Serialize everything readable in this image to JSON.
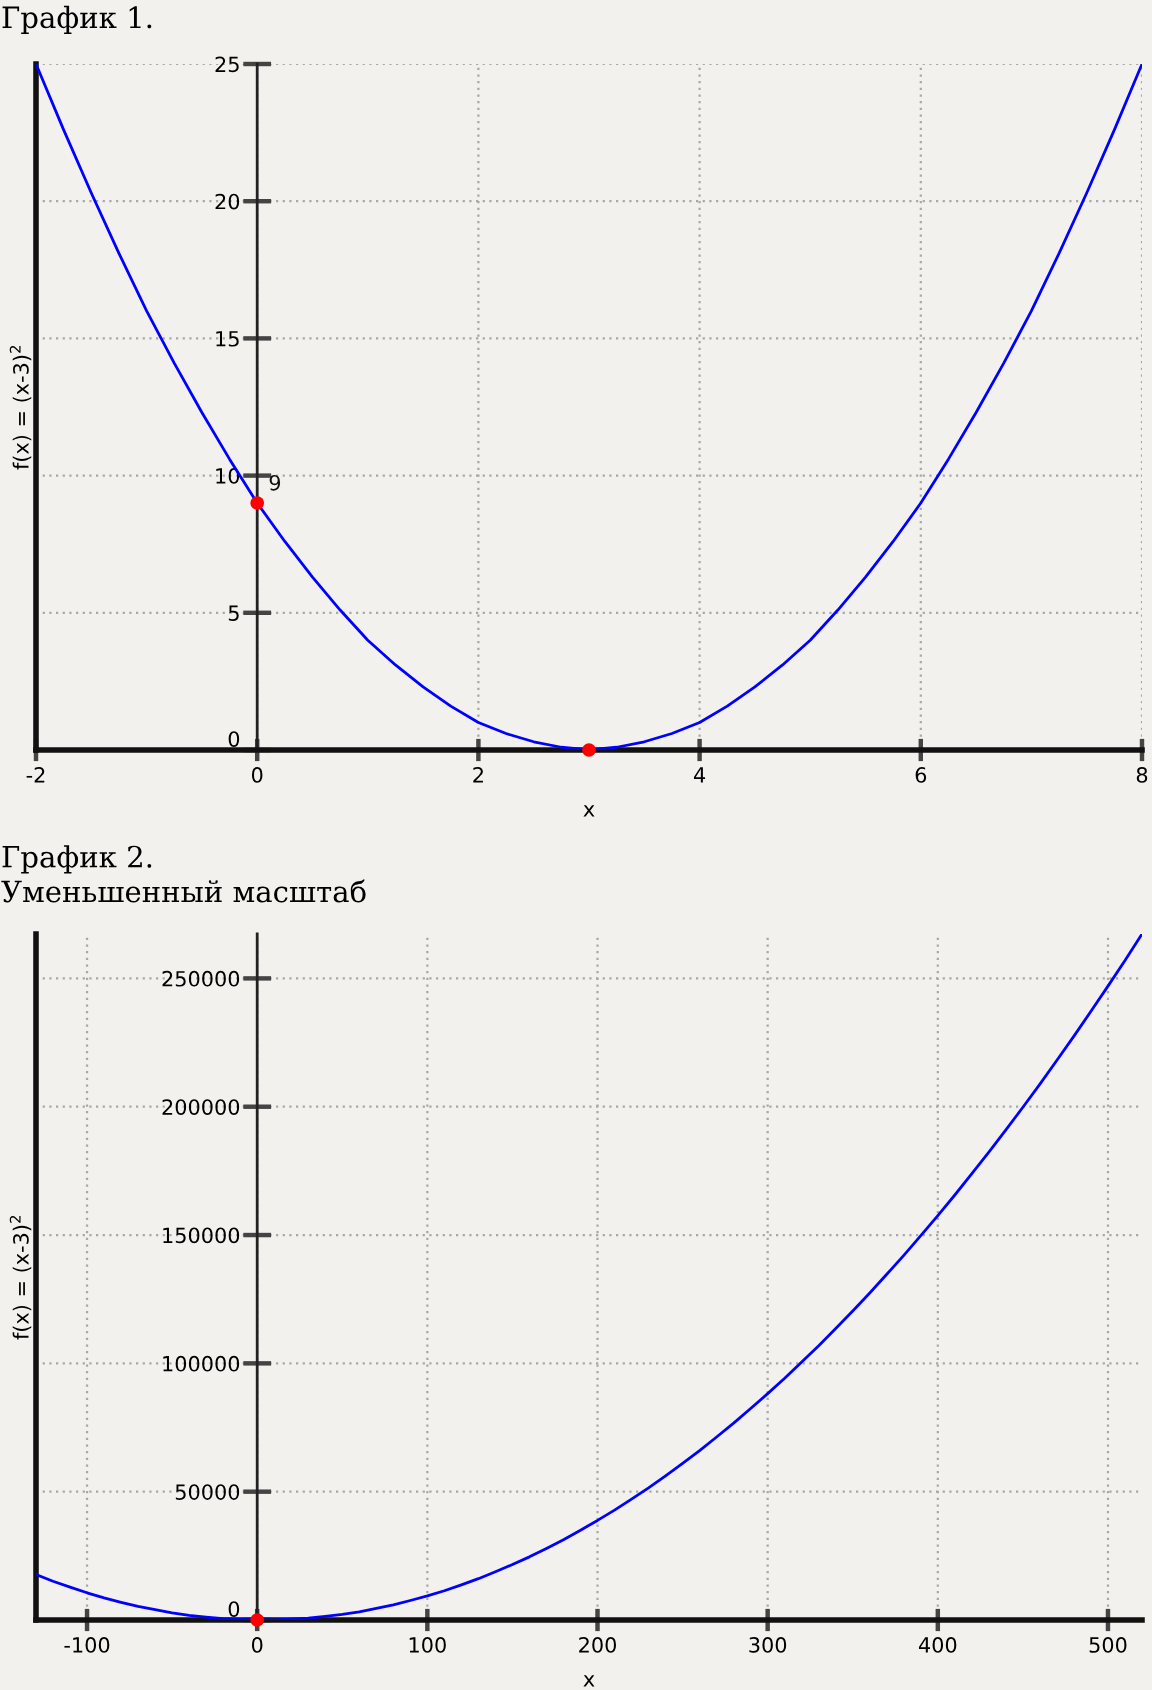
{
  "chart_data": [
    {
      "type": "line",
      "title": "График 1.",
      "xlabel": "x",
      "ylabel": "f(x) = (x-3)$^{2}$",
      "xlim": [
        -2,
        8
      ],
      "ylim": [
        0,
        25
      ],
      "xticks": [
        -2,
        0,
        2,
        4,
        6,
        8
      ],
      "yticks": [
        0,
        5,
        10,
        15,
        20,
        25
      ],
      "grid": true,
      "series": [
        {
          "color": "#0000ff",
          "x": [
            -2,
            -1.75,
            -1.5,
            -1.25,
            -1,
            -0.75,
            -0.5,
            -0.25,
            0,
            0.25,
            0.5,
            0.75,
            1,
            1.25,
            1.5,
            1.75,
            2,
            2.25,
            2.5,
            2.75,
            3,
            3.25,
            3.5,
            3.75,
            4,
            4.25,
            4.5,
            4.75,
            5,
            5.25,
            5.5,
            5.75,
            6,
            6.25,
            6.5,
            6.75,
            7,
            7.25,
            7.5,
            7.75,
            8
          ],
          "values": [
            25,
            22.6,
            20.3,
            18.1,
            16,
            14.1,
            12.3,
            10.6,
            9,
            7.6,
            6.3,
            5.1,
            4,
            3.1,
            2.3,
            1.6,
            1,
            0.6,
            0.3,
            0.1,
            0,
            0.1,
            0.3,
            0.6,
            1,
            1.6,
            2.3,
            3.1,
            4,
            5.1,
            6.3,
            7.6,
            9,
            10.6,
            12.3,
            14.1,
            16,
            18.1,
            20.3,
            22.6,
            25
          ]
        },
        {
          "type": "scatter",
          "color": "#ff0000",
          "marker": "circle",
          "x": [
            0,
            3
          ],
          "values": [
            9,
            0
          ]
        }
      ],
      "annotations": [
        {
          "text": "9",
          "x": 0,
          "y": 9
        }
      ]
    },
    {
      "type": "line",
      "title": "График 2.",
      "subtitle": "Уменьшенный масштаб",
      "xlabel": "x",
      "ylabel": "f(x) = (x-3)$^{2}$",
      "xlim": [
        -130,
        520
      ],
      "ylim": [
        0,
        267300
      ],
      "xticks": [
        -100,
        0,
        100,
        200,
        300,
        400,
        500
      ],
      "yticks": [
        0,
        50000,
        100000,
        150000,
        200000,
        250000
      ],
      "grid": true,
      "series": [
        {
          "color": "#0000ff",
          "x": [
            -130,
            -120,
            -110,
            -100,
            -90,
            -80,
            -70,
            -60,
            -50,
            -40,
            -30,
            -20,
            -10,
            0,
            10,
            20,
            30,
            40,
            50,
            60,
            70,
            80,
            90,
            100,
            110,
            120,
            130,
            140,
            150,
            160,
            170,
            180,
            190,
            200,
            210,
            220,
            230,
            240,
            250,
            260,
            270,
            280,
            290,
            300,
            310,
            320,
            330,
            340,
            350,
            360,
            370,
            380,
            390,
            400,
            410,
            420,
            430,
            440,
            450,
            460,
            470,
            480,
            490,
            500,
            510,
            520
          ],
          "values": [
            17700,
            15100,
            12800,
            10600,
            8600,
            6900,
            5300,
            4000,
            2800,
            1800,
            1100,
            500,
            200,
            0,
            0,
            300,
            700,
            1400,
            2200,
            3200,
            4500,
            5900,
            7600,
            9400,
            11400,
            13700,
            16100,
            18800,
            21600,
            24600,
            27900,
            31300,
            35000,
            38800,
            42800,
            47100,
            51500,
            56200,
            61000,
            66000,
            71300,
            76700,
            82400,
            88200,
            94200,
            100500,
            106900,
            113600,
            120400,
            127400,
            134700,
            142100,
            149800,
            157600,
            165600,
            173900,
            182300,
            191000,
            199800,
            208800,
            218100,
            227500,
            237200,
            247000,
            257000,
            267300
          ]
        },
        {
          "type": "scatter",
          "color": "#ff0000",
          "marker": "circle",
          "x": [
            0
          ],
          "values": [
            0
          ]
        }
      ]
    }
  ]
}
